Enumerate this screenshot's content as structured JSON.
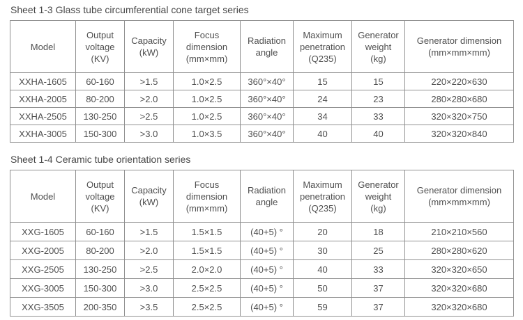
{
  "colors": {
    "background": "#ffffff",
    "border": "#8f8f8f",
    "text": "#4f4f4f",
    "title_text": "#474747"
  },
  "tables": [
    {
      "title": "Sheet 1-3 Glass tube circumferential cone target series",
      "header_keys": [
        "model",
        "output-voltage",
        "capacity",
        "focus-dimension",
        "radiation-angle",
        "maximum-penetration",
        "generator-weight",
        "generator-dimension"
      ],
      "headers": [
        "Model",
        "Output\nvoltage\n(KV)",
        "Capacity\n(kW)",
        "Focus\ndimension\n(mm×mm)",
        "Radiation\nangle",
        "Maximum\npenetration\n(Q235)",
        "Generator\nweight\n(kg)",
        "Generator dimension\n(mm×mm×mm)"
      ],
      "rows": [
        [
          "XXHA-1605",
          "60-160",
          ">1.5",
          "1.0×2.5",
          "360°×40°",
          "15",
          "15",
          "220×220×630"
        ],
        [
          "XXHA-2005",
          "80-200",
          ">2.0",
          "1.0×2.5",
          "360°×40°",
          "24",
          "23",
          "280×280×680"
        ],
        [
          "XXHA-2505",
          "130-250",
          ">2.5",
          "1.0×2.5",
          "360°×40°",
          "34",
          "33",
          "320×320×750"
        ],
        [
          "XXHA-3005",
          "150-300",
          ">3.0",
          "1.0×3.5",
          "360°×40°",
          "40",
          "40",
          "320×320×840"
        ]
      ]
    },
    {
      "title": "Sheet 1-4 Ceramic tube orientation series",
      "header_keys": [
        "model",
        "output-voltage",
        "capacity",
        "focus-dimension",
        "radiation-angle",
        "maximum-penetration",
        "generator-weight",
        "generator-dimension"
      ],
      "headers": [
        "Model",
        "Output\nvoltage\n(KV)",
        "Capacity\n(kW)",
        "Focus\ndimension\n(mm×mm)",
        "Radiation\nangle",
        "Maximum\npenetration\n(Q235)",
        "Generator\nweight\n(kg)",
        "Generator dimension\n(mm×mm×mm)"
      ],
      "rows": [
        [
          "XXG-1605",
          "60-160",
          ">1.5",
          "1.5×1.5",
          "(40+5) °",
          "20",
          "18",
          "210×210×560"
        ],
        [
          "XXG-2005",
          "80-200",
          ">2.0",
          "1.5×1.5",
          "(40+5) °",
          "30",
          "25",
          "280×280×620"
        ],
        [
          "XXG-2505",
          "130-250",
          ">2.5",
          "2.0×2.0",
          "(40+5) °",
          "40",
          "33",
          "320×320×650"
        ],
        [
          "XXG-3005",
          "150-300",
          ">3.0",
          "2.5×2.5",
          "(40+5) °",
          "50",
          "37",
          "320×320×680"
        ],
        [
          "XXG-3505",
          "200-350",
          ">3.5",
          "2.5×2.5",
          "(40+5) °",
          "59",
          "37",
          "320×320×680"
        ]
      ]
    }
  ]
}
